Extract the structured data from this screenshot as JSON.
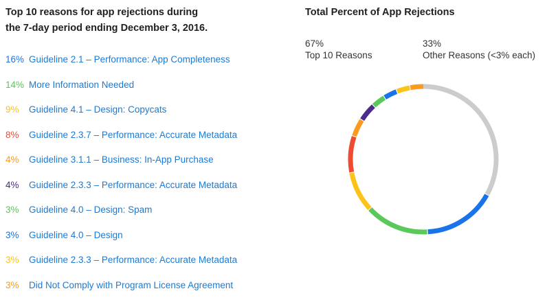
{
  "left": {
    "title_line1": "Top 10 reasons for app rejections during",
    "title_line2": "the 7-day period ending December 3, 2016."
  },
  "right": {
    "title": "Total Percent of App Rejections",
    "top_pct": "67%",
    "top_label": "Top 10 Reasons",
    "other_pct": "33%",
    "other_label": "Other Reasons (<3% each)"
  },
  "colors": {
    "label_text": "#1a7ad6",
    "other_segment": "#cccccc"
  },
  "chart_data": {
    "type": "pie",
    "style": "donut",
    "title": "Total Percent of App Rejections",
    "slices": [
      {
        "pct_label": "16%",
        "label": "Guideline 2.1 – Performance: App Completeness",
        "value": 16,
        "color": "#1a73e8"
      },
      {
        "pct_label": "14%",
        "label": "More Information Needed",
        "value": 14,
        "color": "#5ac85a"
      },
      {
        "pct_label": "9%",
        "label": "Guideline 4.1 – Design: Copycats",
        "value": 9,
        "color": "#fcc419"
      },
      {
        "pct_label": "8%",
        "label": "Guideline 2.3.7 – Performance: Accurate Metadata",
        "value": 8,
        "color": "#ef4b33"
      },
      {
        "pct_label": "4%",
        "label": "Guideline 3.1.1 – Business: In-App Purchase",
        "value": 4,
        "color": "#fb9a1c"
      },
      {
        "pct_label": "4%",
        "label": "Guideline 2.3.3 – Performance: Accurate Metadata",
        "value": 4,
        "color": "#4a2c8f"
      },
      {
        "pct_label": "3%",
        "label": "Guideline 4.0 – Design: Spam",
        "value": 3,
        "color": "#5ac85a"
      },
      {
        "pct_label": "3%",
        "label": "Guideline 4.0 – Design",
        "value": 3,
        "color": "#1a73e8"
      },
      {
        "pct_label": "3%",
        "label": "Guideline 2.3.3 – Performance: Accurate Metadata",
        "value": 3,
        "color": "#fcc419"
      },
      {
        "pct_label": "3%",
        "label": "Did Not Comply with Program License Agreement",
        "value": 3,
        "color": "#fb9a1c"
      }
    ],
    "other": {
      "pct_label": "33%",
      "label": "Other Reasons (<3% each)",
      "value": 33,
      "color": "#cccccc"
    },
    "ring_order": [
      1,
      0,
      2,
      3,
      4,
      6,
      5,
      8,
      7,
      9
    ]
  }
}
